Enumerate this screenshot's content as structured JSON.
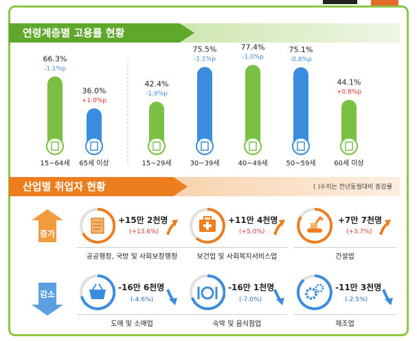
{
  "colors": {
    "green": "#7ac143",
    "blue": "#3a8dde",
    "orange": "#ee7d1f",
    "red": "#e32d2d",
    "dark_blue": "#2b6cb0"
  },
  "sections": {
    "age_title": "연령계층별 고용률 현황",
    "industry_title": "산업별 취업자 현황",
    "industry_note": "( )수치는 전년동월대비 증감률"
  },
  "chart_data": {
    "type": "bar",
    "ylim": [
      0,
      100
    ],
    "categories": [
      "15~64세",
      "65세 이상",
      "15~29세",
      "30~39세",
      "40~49세",
      "50~59세",
      "60세 이상"
    ],
    "values": [
      66.3,
      36.0,
      42.4,
      75.5,
      77.4,
      75.1,
      44.1
    ],
    "value_labels": [
      "66.3%",
      "36.0%",
      "42.4%",
      "75.5%",
      "77.4%",
      "75.1%",
      "44.1%"
    ],
    "change_labels": [
      "-1.1%p",
      "+1.0%p",
      "-1.9%p",
      "-1.1%p",
      "-1.0%p",
      "-0.8%p",
      "+0.8%p"
    ],
    "bar_colors": [
      "green",
      "blue",
      "green",
      "blue",
      "green",
      "blue",
      "green"
    ],
    "change_colors": [
      "blue",
      "red",
      "blue",
      "blue",
      "blue",
      "blue",
      "red"
    ]
  },
  "industry": {
    "increase_label": "증가",
    "decrease_label": "감소",
    "increase": [
      {
        "name": "공공행정, 국방 및 사회보장행정",
        "value": "+15만 2천명",
        "rate": "(+13.6%)",
        "icon": "document-scroll-icon"
      },
      {
        "name": "보건업 및 사회복지서비스업",
        "value": "+11만 4천명",
        "rate": "(+5.0%)",
        "icon": "first-aid-kit-icon"
      },
      {
        "name": "건설업",
        "value": "+7만 7천명",
        "rate": "(+3.7%)",
        "icon": "excavator-icon"
      }
    ],
    "decrease": [
      {
        "name": "도매 및 소매업",
        "value": "-16만 6천명",
        "rate": "(-4.6%)",
        "icon": "shopping-basket-icon"
      },
      {
        "name": "숙박 및 음식점업",
        "value": "-16만 1천명",
        "rate": "(-7.0%)",
        "icon": "plate-cutlery-icon"
      },
      {
        "name": "제조업",
        "value": "-11만 3천명",
        "rate": "(-2.5%)",
        "icon": "gears-icon"
      }
    ]
  }
}
